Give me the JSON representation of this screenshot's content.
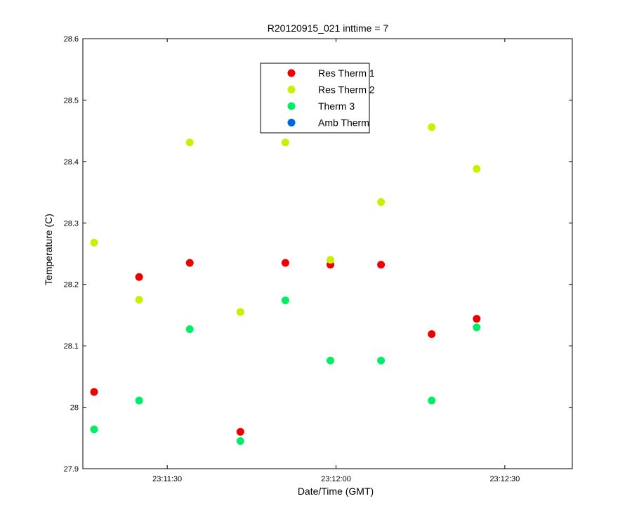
{
  "chart_data": {
    "type": "scatter",
    "title": "R20120915_021 inttime = 7",
    "xlabel": "Date/Time (GMT)",
    "ylabel": "Temperature (C)",
    "xlim": [
      "23:11:15",
      "23:12:42"
    ],
    "ylim": [
      27.9,
      28.6
    ],
    "x_ticks": [
      "23:11:30",
      "23:12:00",
      "23:12:30"
    ],
    "y_ticks": [
      "27.9",
      "28",
      "28.1",
      "28.2",
      "28.3",
      "28.4",
      "28.5",
      "28.6"
    ],
    "grid": false,
    "legend_position": "top-center",
    "x": [
      "23:11:17",
      "23:11:25",
      "23:11:34",
      "23:11:43",
      "23:11:51",
      "23:11:59",
      "23:12:08",
      "23:12:17",
      "23:12:25"
    ],
    "series": [
      {
        "name": "Res Therm 1",
        "color": "#ee0000",
        "values": [
          28.025,
          28.212,
          28.235,
          27.96,
          28.235,
          28.232,
          28.232,
          28.119,
          28.144
        ]
      },
      {
        "name": "Res Therm 2",
        "color": "#ccee00",
        "values": [
          28.268,
          28.175,
          28.431,
          28.155,
          28.431,
          28.24,
          28.334,
          28.456,
          28.388
        ]
      },
      {
        "name": "Therm 3",
        "color": "#00ee66",
        "values": [
          27.964,
          28.011,
          28.127,
          27.945,
          28.174,
          28.076,
          28.076,
          28.011,
          28.13
        ]
      },
      {
        "name": "Amb Therm",
        "color": "#0066dd",
        "values": []
      }
    ]
  }
}
